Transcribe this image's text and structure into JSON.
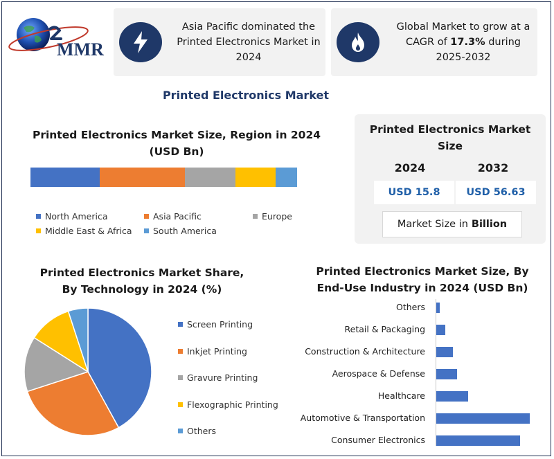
{
  "logo": {
    "text": "MMR"
  },
  "cards": [
    {
      "icon": "lightning-icon",
      "text": "Asia Pacific dominated the Printed Electronics Market in 2024"
    },
    {
      "icon": "flame-icon",
      "text_pre": "Global Market to grow at a CAGR of ",
      "text_bold": "17.3%",
      "text_post": " during 2025-2032"
    }
  ],
  "main_title": "Printed Electronics Market",
  "region": {
    "title": "Printed Electronics Market Size, Region in 2024 (USD Bn)",
    "legend": [
      "North America",
      "Asia Pacific",
      "Europe",
      "Middle East & Africa",
      "South America"
    ]
  },
  "size_box": {
    "title": "Printed Electronics Market Size",
    "year1": "2024",
    "year2": "2032",
    "value1": "USD 15.8",
    "value2": "USD 56.63",
    "unit_pre": "Market Size in",
    "unit_bold": "Billion"
  },
  "tech": {
    "title": "Printed Electronics Market Share, By Technology in 2024 (%)",
    "legend": [
      "Screen Printing",
      "Inkjet Printing",
      "Gravure Printing",
      "Flexographic Printing",
      "Others"
    ]
  },
  "enduse": {
    "title": "Printed Electronics Market Size, By End-Use Industry in 2024 (USD Bn)"
  },
  "colors": {
    "blue": "#4472c4",
    "orange": "#ed7d31",
    "gray": "#a5a5a5",
    "yellow": "#ffc000",
    "lightblue": "#5b9bd5",
    "navy": "#1f3868"
  },
  "chart_data": [
    {
      "type": "bar",
      "orientation": "horizontal-stacked",
      "title": "Printed Electronics Market Size, Region in 2024 (USD Bn)",
      "categories": [
        "North America",
        "Asia Pacific",
        "Europe",
        "Middle East & Africa",
        "South America"
      ],
      "values": [
        26,
        32,
        19,
        15,
        8
      ],
      "legend": "bottom"
    },
    {
      "type": "pie",
      "title": "Printed Electronics Market Share, By Technology in 2024 (%)",
      "categories": [
        "Screen Printing",
        "Inkjet Printing",
        "Gravure Printing",
        "Flexographic Printing",
        "Others"
      ],
      "values": [
        42,
        28,
        14,
        11,
        5
      ],
      "legend": "right"
    },
    {
      "type": "bar",
      "orientation": "horizontal",
      "title": "Printed Electronics Market Size, By End-Use Industry in 2024 (USD Bn)",
      "categories": [
        "Others",
        "Retail & Packaging",
        "Construction & Architecture",
        "Aerospace & Defense",
        "Healthcare",
        "Automotive & Transportation",
        "Consumer Electronics"
      ],
      "values": [
        0.2,
        0.5,
        0.9,
        1.1,
        1.7,
        5.0,
        4.5
      ],
      "xlim": [
        0,
        5.2
      ]
    }
  ]
}
